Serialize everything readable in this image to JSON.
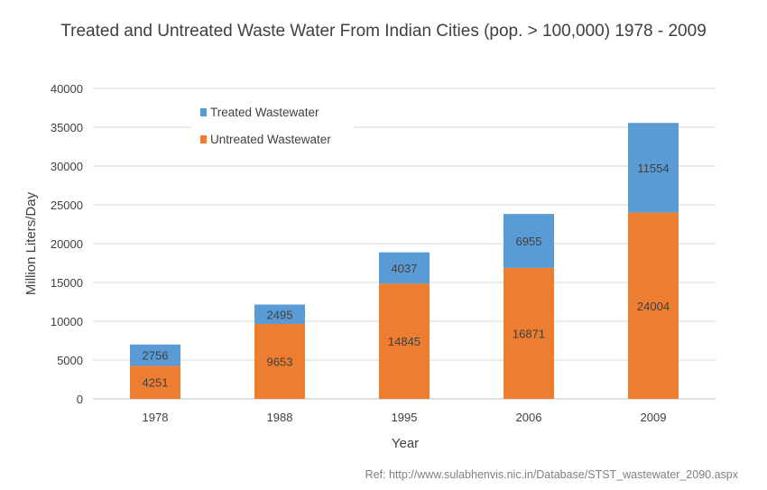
{
  "chart_data": {
    "type": "bar",
    "stacked": true,
    "title": "Treated and Untreated Waste Water From Indian Cities (pop. > 100,000) 1978 - 2009",
    "xlabel": "Year",
    "ylabel": "Million Liters/Day",
    "categories": [
      "1978",
      "1988",
      "1995",
      "2006",
      "2009"
    ],
    "series": [
      {
        "name": "Untreated Wastewater",
        "values": [
          4251,
          9653,
          14845,
          16871,
          24004
        ],
        "color": "#ED7D31"
      },
      {
        "name": "Treated Wastewater",
        "values": [
          2756,
          2495,
          4037,
          6955,
          11554
        ],
        "color": "#5B9BD5"
      }
    ],
    "ylim": [
      0,
      40000
    ],
    "yticks": [
      0,
      5000,
      10000,
      15000,
      20000,
      25000,
      30000,
      35000,
      40000
    ],
    "grid": true,
    "legend": "top-left",
    "data_labels": true
  },
  "footnote": "Ref: http://www.sulabhenvis.nic.in/Database/STST_wastewater_2090.aspx"
}
